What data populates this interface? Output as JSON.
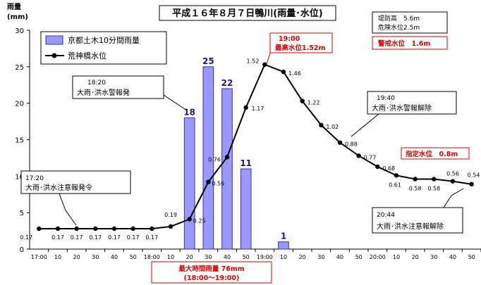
{
  "chart_data": {
    "type": "bar+line",
    "title": "平成１６年８月７日鴨川(雨量･水位)",
    "ylabel_line1": "雨量",
    "ylabel_line2": "(mm)",
    "ylim": [
      0,
      30
    ],
    "yticks": [
      "0",
      "5",
      "10",
      "15",
      "20",
      "25",
      "30"
    ],
    "x_tick_labels": [
      "17:00",
      "10",
      "20",
      "30",
      "40",
      "50",
      "18:00",
      "10",
      "20",
      "30",
      "40",
      "50",
      "19:00",
      "10",
      "20",
      "30",
      "40",
      "50",
      "20:00",
      "10",
      "20",
      "30",
      "40",
      "50"
    ],
    "legend": {
      "bar_series": "京都土木10分間雨量",
      "line_series": "荒神橋水位"
    },
    "bars": [
      {
        "slot": 8,
        "value": 18,
        "label": "18"
      },
      {
        "slot": 9,
        "value": 25,
        "label": "25"
      },
      {
        "slot": 10,
        "value": 22,
        "label": "22"
      },
      {
        "slot": 11,
        "value": 11,
        "label": "11"
      },
      {
        "slot": 13,
        "value": 1,
        "label": "1"
      }
    ],
    "water_level": {
      "unit": "m",
      "points": [
        {
          "slot": 0,
          "level": 0.17,
          "y": 2.8,
          "label": "0.17"
        },
        {
          "slot": 1,
          "level": 0.17,
          "y": 2.8,
          "label": "0.17"
        },
        {
          "slot": 2,
          "level": 0.17,
          "y": 2.8,
          "label": "0.17"
        },
        {
          "slot": 3,
          "level": 0.17,
          "y": 2.8,
          "label": "0.17"
        },
        {
          "slot": 4,
          "level": 0.17,
          "y": 2.8,
          "label": "0.17"
        },
        {
          "slot": 5,
          "level": 0.17,
          "y": 2.8,
          "label": "0.17"
        },
        {
          "slot": 6,
          "level": 0.17,
          "y": 2.8,
          "label": "0.17"
        },
        {
          "slot": 7,
          "level": 0.19,
          "y": 3.1,
          "label": "0.19"
        },
        {
          "slot": 8,
          "level": 0.25,
          "y": 4.1,
          "label": "0.25"
        },
        {
          "slot": 9,
          "level": 0.56,
          "y": 9.2,
          "label": "0.56"
        },
        {
          "slot": 10,
          "level": 0.76,
          "y": 12.6,
          "label": "0.76"
        },
        {
          "slot": 11,
          "level": 1.17,
          "y": 19.4,
          "label": "1.17"
        },
        {
          "slot": 12,
          "level": 1.52,
          "y": 25.3,
          "label": "1.52"
        },
        {
          "slot": 13,
          "level": 1.46,
          "y": 24.3,
          "label": "1.46"
        },
        {
          "slot": 14,
          "level": 1.22,
          "y": 20.3,
          "label": "1.22"
        },
        {
          "slot": 15,
          "level": 1.02,
          "y": 17.0,
          "label": "1.02"
        },
        {
          "slot": 16,
          "level": 0.88,
          "y": 14.6,
          "label": "0.88"
        },
        {
          "slot": 17,
          "level": 0.77,
          "y": 12.8,
          "label": "0.77"
        },
        {
          "slot": 18,
          "level": 0.68,
          "y": 11.3,
          "label": "0.68"
        },
        {
          "slot": 19,
          "level": 0.61,
          "y": 10.1,
          "label": "0.61"
        },
        {
          "slot": 20,
          "level": 0.58,
          "y": 9.6,
          "label": "0.58"
        },
        {
          "slot": 21,
          "level": 0.58,
          "y": 9.6,
          "label": "0.58"
        },
        {
          "slot": 22,
          "level": 0.56,
          "y": 9.3,
          "label": "0.56"
        },
        {
          "slot": 23,
          "level": 0.54,
          "y": 8.9,
          "label": "0.54"
        }
      ]
    },
    "annotations": {
      "info_line1": "堤防高　5.6m",
      "info_line2": "危険水位2.5m",
      "alert_level": "警戒水位　1.6m",
      "peak_line1": "19:00",
      "peak_line2": "最高水位1.52m",
      "designated_level": "指定水位　0.8m",
      "warn_1720_time": "17:20",
      "warn_1720_text": "大雨･洪水注意報発令",
      "warn_1820_time": "18:20",
      "warn_1820_text": "大雨･洪水警報発",
      "warn_1940_time": "19:40",
      "warn_1940_text": "大雨･洪水警報解除",
      "warn_2044_time": "20:44",
      "warn_2044_text": "大雨･洪水注意報解除",
      "max_rain_line1": "最大時間雨量 76mm",
      "max_rain_line2": "(18:00～19:00)"
    },
    "colors": {
      "bar_fill": "#9999ff",
      "bar_stroke": "#3333aa",
      "line": "#000000",
      "bar_label": "#1a1a80",
      "alert_red": "#e00000"
    },
    "grid": false
  }
}
